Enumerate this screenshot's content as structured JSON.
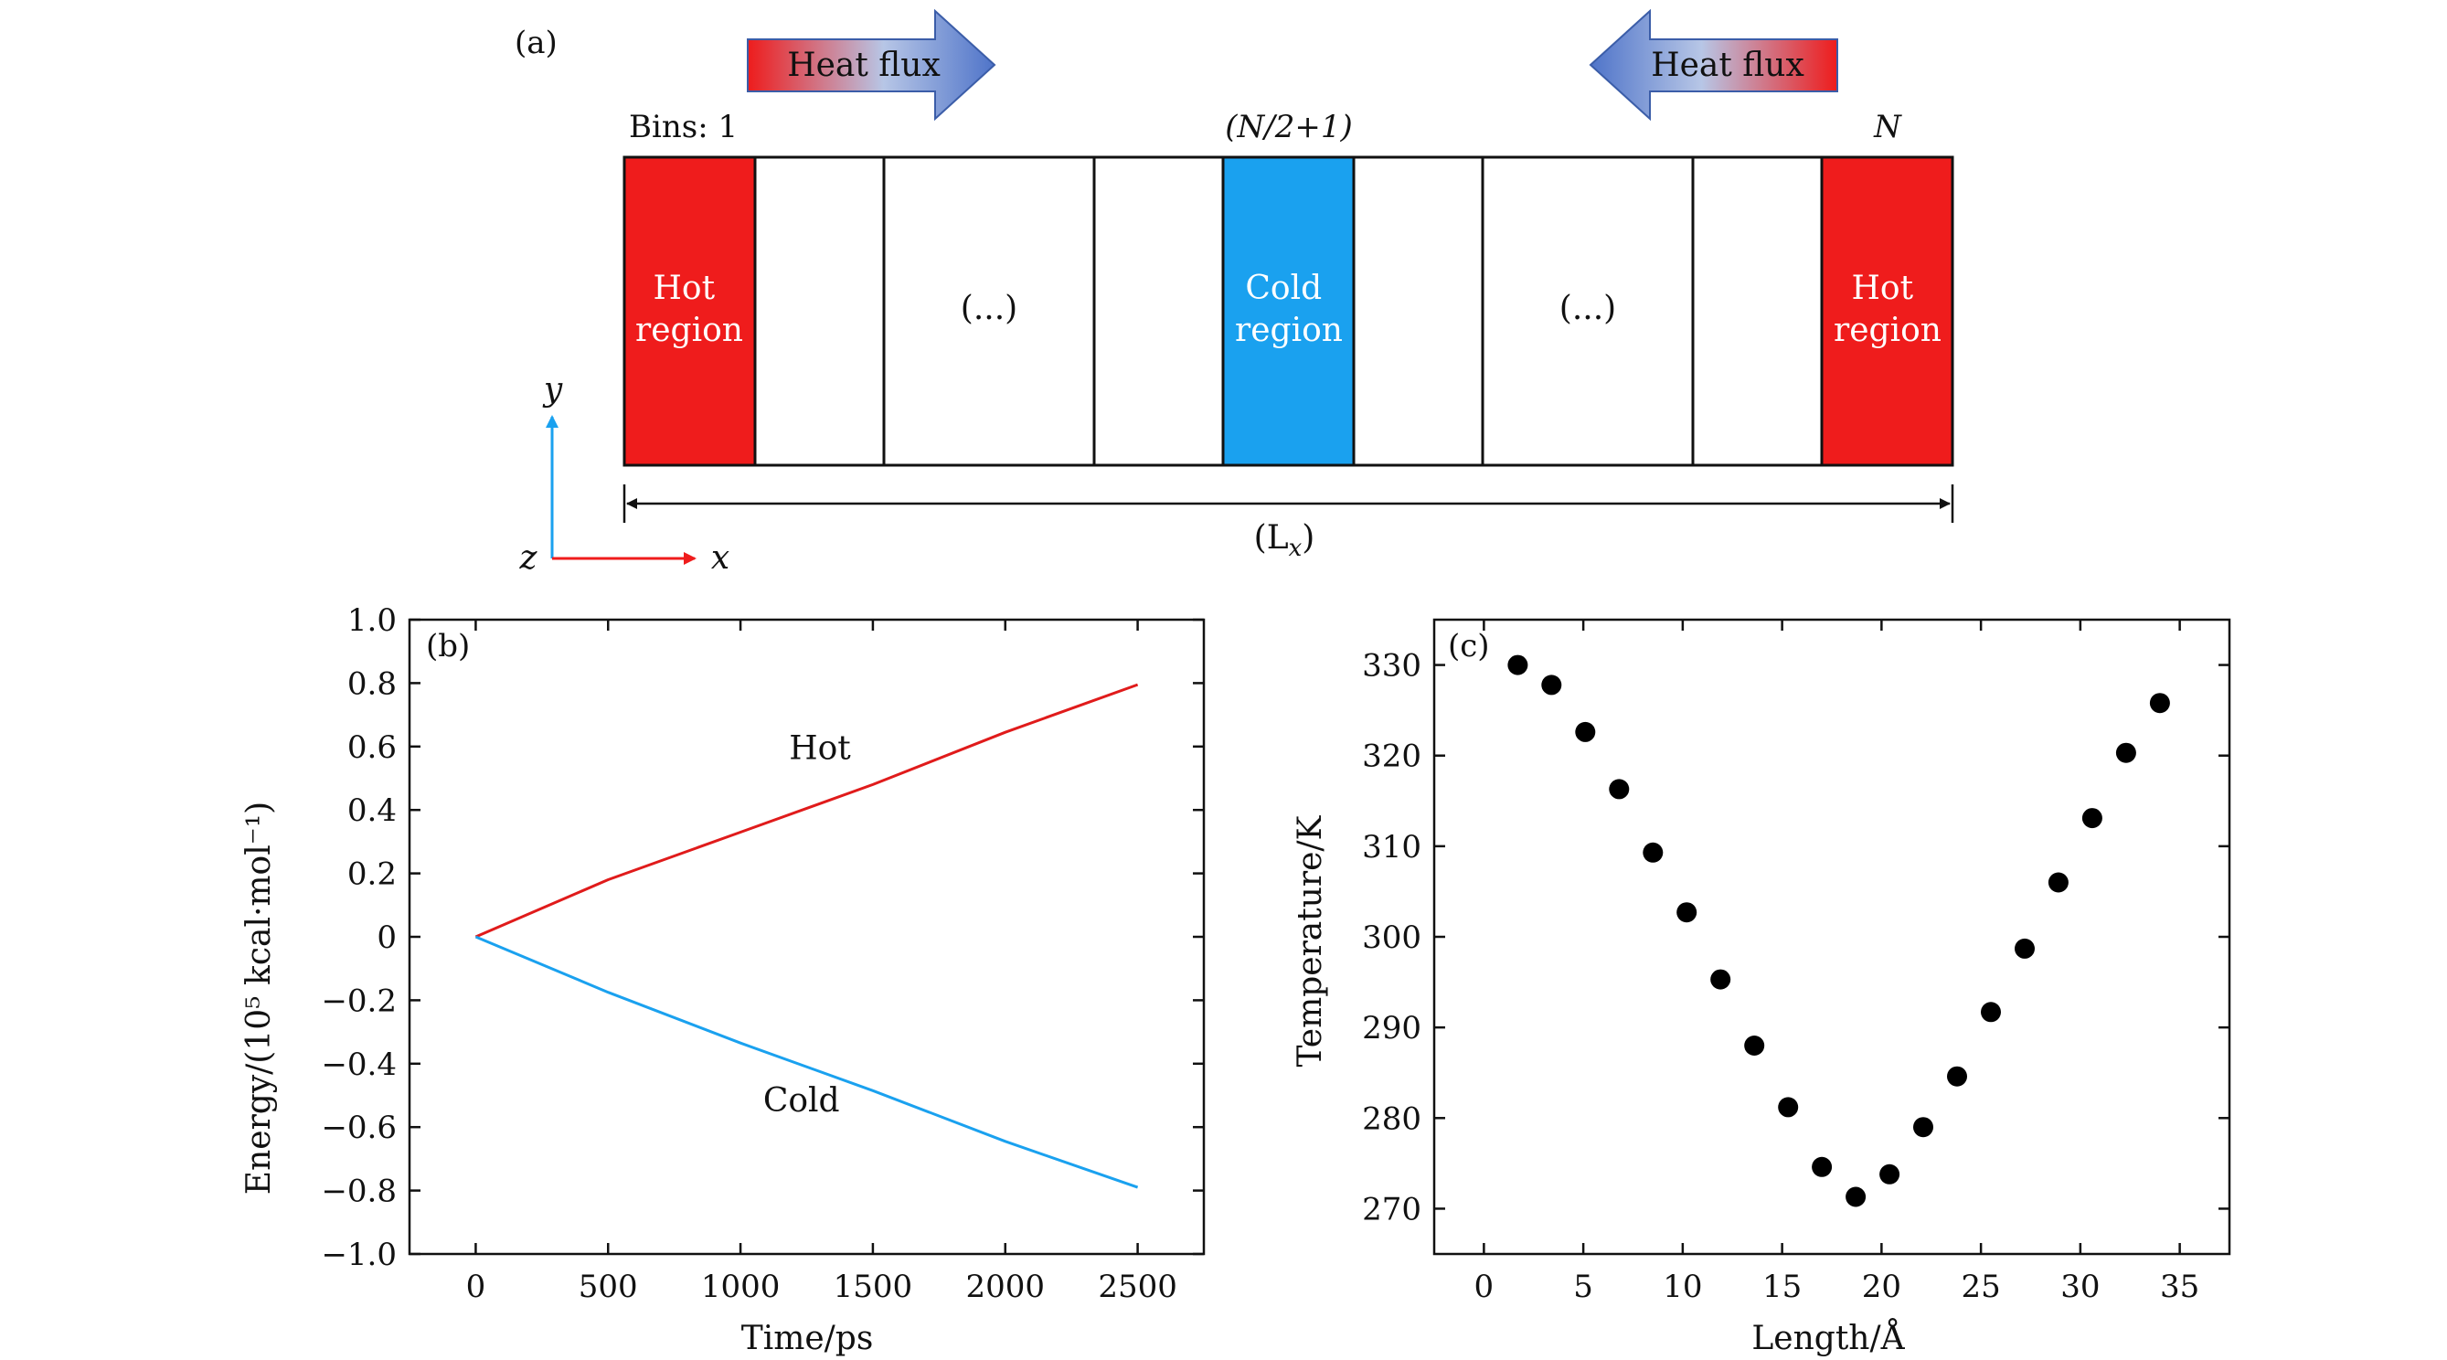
{
  "schematic": {
    "panel_label": "(a)",
    "heat_flux_left": "Heat flux",
    "heat_flux_right": "Heat flux",
    "bin_first_label": "Bins: 1",
    "bin_middle_label": "(N/2+1)",
    "bin_last_label": "N",
    "hot_left": [
      "Hot",
      "region"
    ],
    "cold_center": [
      "Cold",
      "region"
    ],
    "hot_right": [
      "Hot",
      "region"
    ],
    "ellipsis_left": "(...)",
    "ellipsis_right": "(...)",
    "length_label": "(L",
    "length_sub": "x",
    "length_close": ")",
    "axis_y": "y",
    "axis_x": "x",
    "axis_z": "z",
    "colors": {
      "hot": "#ef1c1c",
      "cold": "#1aa1ef",
      "arrow_blue": "#4f74c9",
      "axis_y": "#1aa1ef",
      "axis_x": "#ef1c1c"
    }
  },
  "chart_data": [
    {
      "type": "line",
      "panel_label": "(b)",
      "xlabel": "Time/ps",
      "ylabel": "Energy/(10⁵ kcal·mol⁻¹)",
      "xlim": [
        -250,
        2750
      ],
      "ylim": [
        -1.0,
        1.0
      ],
      "xticks": [
        0,
        500,
        1000,
        1500,
        2000,
        2500
      ],
      "xtick_labels": [
        "0",
        "500",
        "1000",
        "1500",
        "2000",
        "2500"
      ],
      "yticks": [
        -1.0,
        -0.8,
        -0.6,
        -0.4,
        -0.2,
        0,
        0.2,
        0.4,
        0.6,
        0.8,
        1.0
      ],
      "ytick_labels": [
        "−1.0",
        "−0.8",
        "−0.6",
        "−0.4",
        "−0.2",
        "0",
        "0.2",
        "0.4",
        "0.6",
        "0.8",
        "1.0"
      ],
      "series": [
        {
          "name": "Hot",
          "color": "#e01b1b",
          "x": [
            0,
            500,
            1000,
            1500,
            2000,
            2500
          ],
          "y": [
            0,
            0.18,
            0.33,
            0.48,
            0.645,
            0.795
          ]
        },
        {
          "name": "Cold",
          "color": "#1aa1ef",
          "x": [
            0,
            500,
            1000,
            1500,
            2000,
            2500
          ],
          "y": [
            0,
            -0.175,
            -0.335,
            -0.485,
            -0.645,
            -0.79
          ]
        }
      ],
      "annotations": [
        {
          "text": "Hot",
          "x": 1300,
          "y": 0.56
        },
        {
          "text": "Cold",
          "x": 1230,
          "y": -0.55
        }
      ]
    },
    {
      "type": "scatter",
      "panel_label": "(c)",
      "xlabel": "Length/Å",
      "ylabel": "Temperature/K",
      "xlim": [
        -2.5,
        37.5
      ],
      "ylim": [
        265,
        335
      ],
      "xticks": [
        0,
        5,
        10,
        15,
        20,
        25,
        30,
        35
      ],
      "xtick_labels": [
        "0",
        "5",
        "10",
        "15",
        "20",
        "25",
        "30",
        "35"
      ],
      "yticks": [
        270,
        280,
        290,
        300,
        310,
        320,
        330
      ],
      "ytick_labels": [
        "270",
        "280",
        "290",
        "300",
        "310",
        "320",
        "330"
      ],
      "series": [
        {
          "color": "#000000",
          "x": [
            1.7,
            3.4,
            5.1,
            6.8,
            8.5,
            10.2,
            11.9,
            13.6,
            15.3,
            17.0,
            18.7,
            20.4,
            22.1,
            23.8,
            25.5,
            27.2,
            28.9,
            30.6,
            32.3,
            34.0
          ],
          "y": [
            330.0,
            327.8,
            322.6,
            316.3,
            309.3,
            302.7,
            295.3,
            288.0,
            281.2,
            274.6,
            271.3,
            273.8,
            279.0,
            284.6,
            291.7,
            298.7,
            306.0,
            313.1,
            320.3,
            325.8
          ]
        }
      ]
    }
  ]
}
